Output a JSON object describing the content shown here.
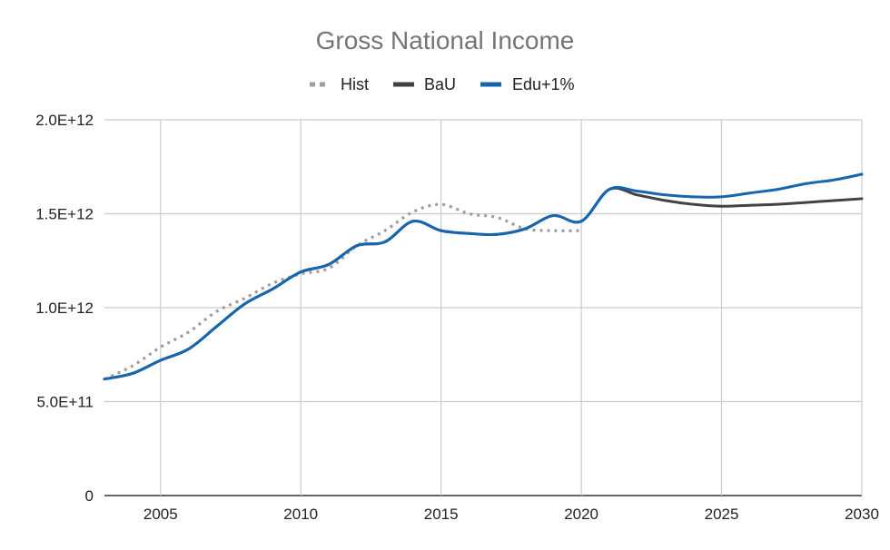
{
  "chart_data": {
    "type": "line",
    "title": "Gross National Income",
    "xlabel": "",
    "ylabel": "",
    "xlim": [
      2003,
      2030
    ],
    "ylim": [
      0,
      2000000000000
    ],
    "x_ticks": [
      2005,
      2010,
      2015,
      2020,
      2025,
      2030
    ],
    "y_ticks": [
      {
        "value": 0,
        "label": "0"
      },
      {
        "value": 500000000000,
        "label": "5.0E+11"
      },
      {
        "value": 1000000000000,
        "label": "1.0E+12"
      },
      {
        "value": 1500000000000,
        "label": "1.5E+12"
      },
      {
        "value": 2000000000000,
        "label": "2.0E+12"
      }
    ],
    "grid": true,
    "legend_position": "top",
    "series": [
      {
        "name": "Hist",
        "color": "#9e9e9e",
        "style": "dotted",
        "x": [
          2003,
          2004,
          2005,
          2006,
          2007,
          2008,
          2009,
          2010,
          2011,
          2012,
          2013,
          2014,
          2015,
          2016,
          2017,
          2018,
          2019,
          2020
        ],
        "y": [
          620000000000,
          690000000000,
          790000000000,
          870000000000,
          980000000000,
          1050000000000,
          1130000000000,
          1180000000000,
          1210000000000,
          1330000000000,
          1410000000000,
          1510000000000,
          1550000000000,
          1500000000000,
          1480000000000,
          1420000000000,
          1410000000000,
          1410000000000
        ]
      },
      {
        "name": "BaU",
        "color": "#424242",
        "style": "solid",
        "x": [
          2003,
          2004,
          2005,
          2006,
          2007,
          2008,
          2009,
          2010,
          2011,
          2012,
          2013,
          2014,
          2015,
          2016,
          2017,
          2018,
          2019,
          2020,
          2021,
          2022,
          2023,
          2024,
          2025,
          2026,
          2027,
          2028,
          2029,
          2030
        ],
        "y": [
          620000000000,
          650000000000,
          720000000000,
          780000000000,
          900000000000,
          1020000000000,
          1100000000000,
          1190000000000,
          1230000000000,
          1330000000000,
          1350000000000,
          1460000000000,
          1410000000000,
          1395000000000,
          1390000000000,
          1420000000000,
          1490000000000,
          1460000000000,
          1630000000000,
          1600000000000,
          1570000000000,
          1550000000000,
          1540000000000,
          1545000000000,
          1550000000000,
          1560000000000,
          1570000000000,
          1580000000000
        ]
      },
      {
        "name": "Edu+1%",
        "color": "#1565b0",
        "style": "solid",
        "x": [
          2003,
          2004,
          2005,
          2006,
          2007,
          2008,
          2009,
          2010,
          2011,
          2012,
          2013,
          2014,
          2015,
          2016,
          2017,
          2018,
          2019,
          2020,
          2021,
          2022,
          2023,
          2024,
          2025,
          2026,
          2027,
          2028,
          2029,
          2030
        ],
        "y": [
          620000000000,
          650000000000,
          720000000000,
          780000000000,
          900000000000,
          1020000000000,
          1100000000000,
          1190000000000,
          1230000000000,
          1330000000000,
          1350000000000,
          1460000000000,
          1410000000000,
          1395000000000,
          1390000000000,
          1420000000000,
          1490000000000,
          1460000000000,
          1630000000000,
          1620000000000,
          1600000000000,
          1590000000000,
          1590000000000,
          1610000000000,
          1630000000000,
          1660000000000,
          1680000000000,
          1710000000000
        ]
      }
    ]
  }
}
